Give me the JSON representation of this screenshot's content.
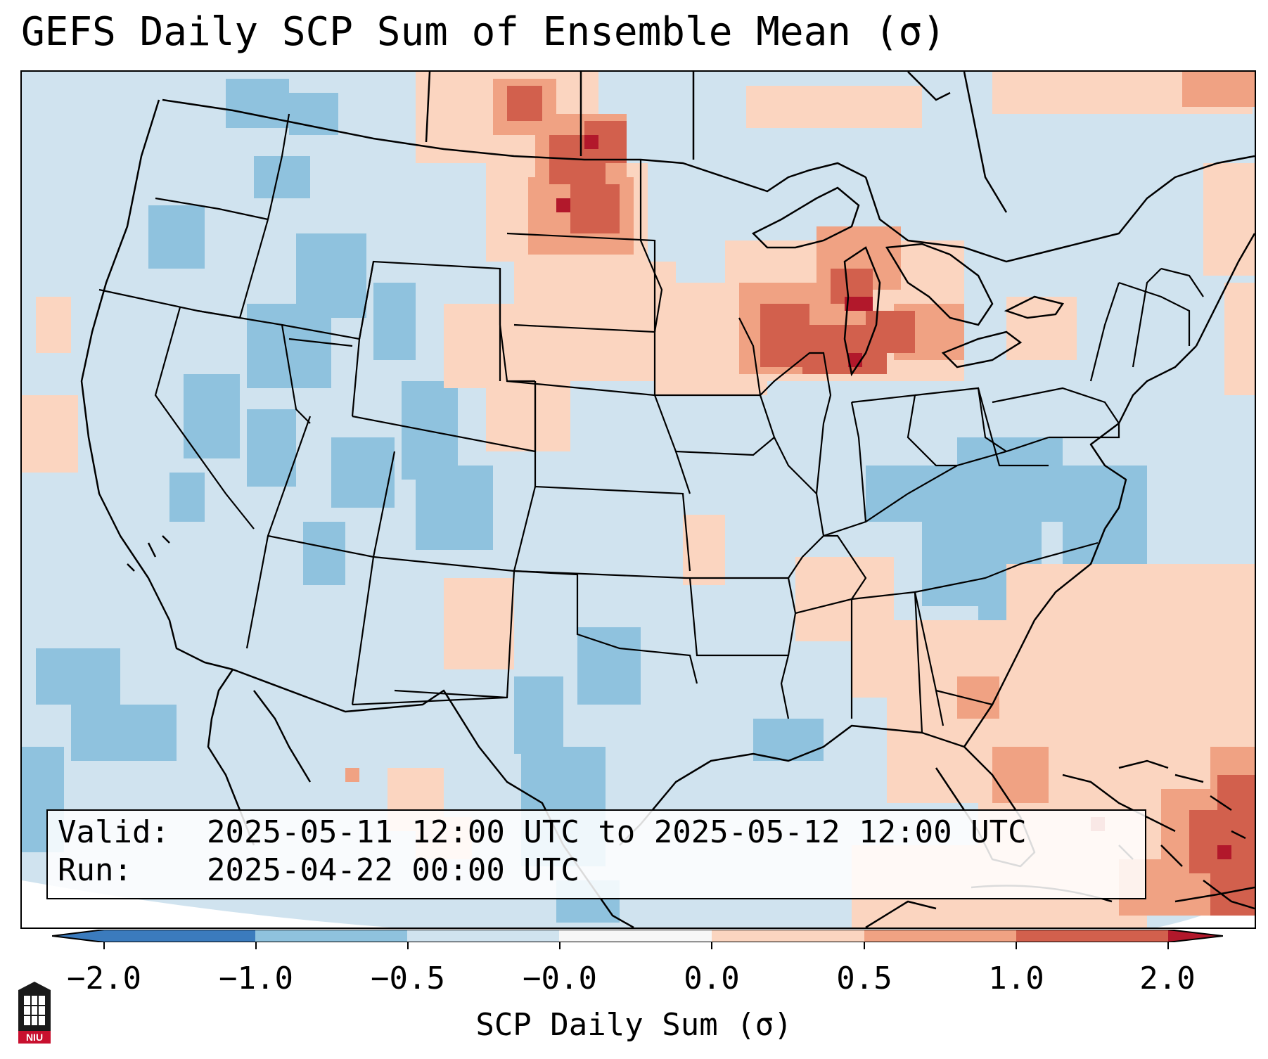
{
  "title": "GEFS Daily SCP Sum of Ensemble Mean (σ)",
  "info": {
    "valid_label": "Valid:",
    "valid_value": "2025-05-11 12:00 UTC to 2025-05-12 12:00 UTC",
    "run_label": "Run:",
    "run_value": "2025-04-22 00:00 UTC"
  },
  "colorbar": {
    "label": "SCP Daily Sum (σ)",
    "ticks": [
      "−2.0",
      "−1.0",
      "−0.5",
      "−0.0",
      "0.0",
      "0.5",
      "1.0",
      "2.0"
    ],
    "colors": [
      "#3b7bbd",
      "#8fc2de",
      "#d0e3ef",
      "#f7f7f7",
      "#fbd5c0",
      "#f0a283",
      "#d2604d",
      "#b2182b"
    ]
  },
  "logo": {
    "icon": "niu-logo-icon",
    "text": "NIU"
  }
}
